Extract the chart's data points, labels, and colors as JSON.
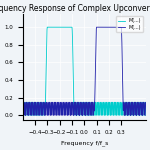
{
  "title": "Frequency Response of Complex Upconverted LPFs",
  "xlabel": "Frequency f/f_s",
  "xlim": [
    -0.5,
    0.5
  ],
  "ylim": [
    -0.05,
    1.15
  ],
  "background_color": "#f0f4f8",
  "grid_color": "#ffffff",
  "legend_labels": [
    "M(...)",
    "M(...)"
  ],
  "legend_colors": [
    "#2222aa",
    "#00cccc"
  ],
  "fc": 0.2,
  "bw": 0.1,
  "ripple_freq": 40,
  "title_fontsize": 5.5,
  "label_fontsize": 4.5,
  "tick_fontsize": 4.0
}
